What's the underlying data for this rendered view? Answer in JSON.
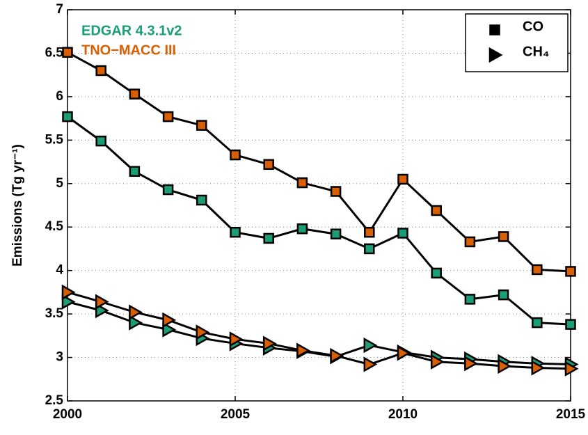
{
  "chart_data": {
    "type": "line",
    "y_label": "Emissions (Tg yr⁻¹)",
    "x": [
      2000,
      2001,
      2002,
      2003,
      2004,
      2005,
      2006,
      2007,
      2008,
      2009,
      2010,
      2011,
      2012,
      2013,
      2014,
      2015
    ],
    "xlim": [
      2000,
      2015
    ],
    "xticks": [
      2000,
      2005,
      2010,
      2015
    ],
    "ylim": [
      2.5,
      7
    ],
    "yticks": [
      2.5,
      3,
      3.5,
      4,
      4.5,
      5,
      5.5,
      6,
      6.5,
      7
    ],
    "grid": true,
    "legend_position": "upper right",
    "species": [
      {
        "name": "CO",
        "marker": "square"
      },
      {
        "name": "CH₄",
        "marker": "triangle"
      }
    ],
    "datasets": [
      {
        "name": "EDGAR 4.3.1v2",
        "color": "#1b9e77",
        "values": [
          [
            5.77,
            5.49,
            5.14,
            4.93,
            4.81,
            4.44,
            4.37,
            4.48,
            4.42,
            4.25,
            4.43,
            3.97,
            3.67,
            3.72,
            3.4,
            3.38
          ],
          [
            3.64,
            3.54,
            3.4,
            3.32,
            3.22,
            3.16,
            3.11,
            3.07,
            3.01,
            3.14,
            3.06,
            3.0,
            2.98,
            2.95,
            2.93,
            2.92
          ]
        ]
      },
      {
        "name": "TNO−MACC III",
        "color": "#d95f02",
        "values": [
          [
            6.51,
            6.3,
            6.03,
            5.77,
            5.67,
            5.33,
            5.22,
            5.01,
            4.91,
            4.44,
            5.05,
            4.69,
            4.33,
            4.39,
            4.01,
            3.99
          ],
          [
            3.75,
            3.64,
            3.52,
            3.43,
            3.29,
            3.21,
            3.16,
            3.08,
            3.02,
            2.92,
            3.05,
            2.95,
            2.93,
            2.9,
            2.88,
            2.87
          ]
        ]
      }
    ]
  }
}
